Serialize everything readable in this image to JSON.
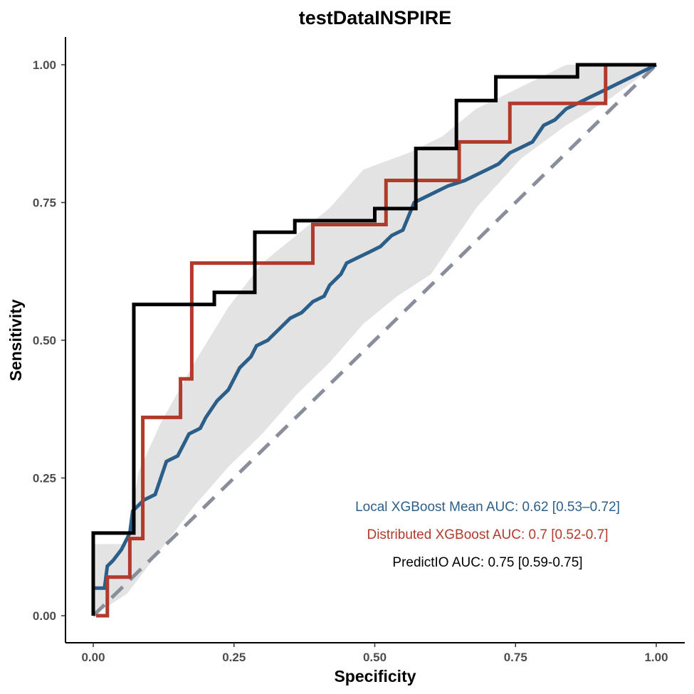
{
  "chart_data": {
    "type": "line",
    "title": "testDataINSPIRE",
    "xlabel": "Specificity",
    "ylabel": "Sensitivity",
    "xlim": [
      0,
      1
    ],
    "ylim": [
      0,
      1
    ],
    "x_ticks": [
      "0.00",
      "0.25",
      "0.50",
      "0.75",
      "1.00"
    ],
    "y_ticks": [
      "0.00",
      "0.25",
      "0.50",
      "0.75",
      "1.00"
    ],
    "grid": false,
    "legend_position": "bottom-right",
    "annotations": [
      {
        "text": "Local XGBoost Mean AUC: 0.62 [0.53–0.72]",
        "color": "#2b5f8a"
      },
      {
        "text": "Distributed XGBoost AUC: 0.7 [0.52-0.7]",
        "color": "#b23a2a"
      },
      {
        "text": "PredictIO AUC: 0.75 [0.59-0.75]",
        "color": "#000000"
      }
    ],
    "reference_line": {
      "color": "#8a8e9c",
      "dash": "dashed",
      "points": [
        [
          0,
          0
        ],
        [
          1,
          1
        ]
      ]
    },
    "band": {
      "color": "#e3e3e3",
      "upper": [
        [
          0,
          0.13
        ],
        [
          0.06,
          0.13
        ],
        [
          0.08,
          0.26
        ],
        [
          0.12,
          0.35
        ],
        [
          0.18,
          0.46
        ],
        [
          0.24,
          0.56
        ],
        [
          0.3,
          0.64
        ],
        [
          0.36,
          0.69
        ],
        [
          0.42,
          0.74
        ],
        [
          0.48,
          0.81
        ],
        [
          0.56,
          0.84
        ],
        [
          0.62,
          0.87
        ],
        [
          0.68,
          0.92
        ],
        [
          0.76,
          0.96
        ],
        [
          0.84,
          1.0
        ],
        [
          1.0,
          1.0
        ]
      ],
      "lower": [
        [
          0,
          0
        ],
        [
          0.06,
          0.04
        ],
        [
          0.12,
          0.12
        ],
        [
          0.18,
          0.2
        ],
        [
          0.24,
          0.27
        ],
        [
          0.3,
          0.33
        ],
        [
          0.36,
          0.4
        ],
        [
          0.42,
          0.46
        ],
        [
          0.48,
          0.53
        ],
        [
          0.54,
          0.58
        ],
        [
          0.6,
          0.62
        ],
        [
          0.68,
          0.74
        ],
        [
          0.76,
          0.83
        ],
        [
          0.84,
          0.89
        ],
        [
          0.92,
          0.94
        ],
        [
          1.0,
          1.0
        ]
      ]
    },
    "series": [
      {
        "name": "Local XGBoost Mean",
        "color": "#2b5f8a",
        "points": [
          [
            0,
            0.05
          ],
          [
            0.02,
            0.05
          ],
          [
            0.025,
            0.09
          ],
          [
            0.035,
            0.1
          ],
          [
            0.05,
            0.12
          ],
          [
            0.065,
            0.15
          ],
          [
            0.07,
            0.19
          ],
          [
            0.08,
            0.2
          ],
          [
            0.09,
            0.21
          ],
          [
            0.11,
            0.22
          ],
          [
            0.12,
            0.25
          ],
          [
            0.13,
            0.28
          ],
          [
            0.15,
            0.29
          ],
          [
            0.16,
            0.31
          ],
          [
            0.17,
            0.33
          ],
          [
            0.19,
            0.34
          ],
          [
            0.2,
            0.36
          ],
          [
            0.22,
            0.39
          ],
          [
            0.24,
            0.41
          ],
          [
            0.25,
            0.43
          ],
          [
            0.26,
            0.45
          ],
          [
            0.28,
            0.47
          ],
          [
            0.29,
            0.49
          ],
          [
            0.31,
            0.5
          ],
          [
            0.33,
            0.52
          ],
          [
            0.35,
            0.54
          ],
          [
            0.37,
            0.55
          ],
          [
            0.39,
            0.57
          ],
          [
            0.41,
            0.58
          ],
          [
            0.42,
            0.6
          ],
          [
            0.44,
            0.62
          ],
          [
            0.45,
            0.64
          ],
          [
            0.47,
            0.65
          ],
          [
            0.49,
            0.66
          ],
          [
            0.51,
            0.67
          ],
          [
            0.53,
            0.69
          ],
          [
            0.55,
            0.7
          ],
          [
            0.57,
            0.75
          ],
          [
            0.59,
            0.76
          ],
          [
            0.61,
            0.77
          ],
          [
            0.63,
            0.78
          ],
          [
            0.66,
            0.79
          ],
          [
            0.68,
            0.8
          ],
          [
            0.7,
            0.81
          ],
          [
            0.72,
            0.82
          ],
          [
            0.74,
            0.84
          ],
          [
            0.76,
            0.85
          ],
          [
            0.78,
            0.86
          ],
          [
            0.8,
            0.89
          ],
          [
            0.82,
            0.9
          ],
          [
            0.84,
            0.92
          ],
          [
            0.86,
            0.93
          ],
          [
            0.88,
            0.94
          ],
          [
            0.9,
            0.95
          ],
          [
            0.92,
            0.96
          ],
          [
            0.94,
            0.97
          ],
          [
            0.96,
            0.98
          ],
          [
            0.98,
            0.99
          ],
          [
            1.0,
            1.0
          ]
        ]
      },
      {
        "name": "Distributed XGBoost",
        "color": "#b23a2a",
        "points": [
          [
            0.005,
            0
          ],
          [
            0.025,
            0
          ],
          [
            0.025,
            0.07
          ],
          [
            0.065,
            0.07
          ],
          [
            0.065,
            0.14
          ],
          [
            0.088,
            0.14
          ],
          [
            0.088,
            0.36
          ],
          [
            0.155,
            0.36
          ],
          [
            0.155,
            0.43
          ],
          [
            0.175,
            0.43
          ],
          [
            0.175,
            0.64
          ],
          [
            0.39,
            0.64
          ],
          [
            0.39,
            0.71
          ],
          [
            0.52,
            0.71
          ],
          [
            0.52,
            0.79
          ],
          [
            0.65,
            0.79
          ],
          [
            0.65,
            0.86
          ],
          [
            0.74,
            0.86
          ],
          [
            0.74,
            0.93
          ],
          [
            0.91,
            0.93
          ],
          [
            0.91,
            1.0
          ],
          [
            1.0,
            1.0
          ]
        ]
      },
      {
        "name": "PredictIO",
        "color": "#000000",
        "points": [
          [
            0,
            0
          ],
          [
            0,
            0.15
          ],
          [
            0.072,
            0.15
          ],
          [
            0.072,
            0.565
          ],
          [
            0.215,
            0.565
          ],
          [
            0.215,
            0.587
          ],
          [
            0.287,
            0.587
          ],
          [
            0.287,
            0.696
          ],
          [
            0.358,
            0.696
          ],
          [
            0.358,
            0.717
          ],
          [
            0.5,
            0.717
          ],
          [
            0.5,
            0.739
          ],
          [
            0.573,
            0.739
          ],
          [
            0.573,
            0.848
          ],
          [
            0.645,
            0.848
          ],
          [
            0.645,
            0.935
          ],
          [
            0.715,
            0.935
          ],
          [
            0.715,
            0.978
          ],
          [
            0.86,
            0.978
          ],
          [
            0.86,
            1.0
          ],
          [
            1.0,
            1.0
          ]
        ]
      }
    ]
  }
}
